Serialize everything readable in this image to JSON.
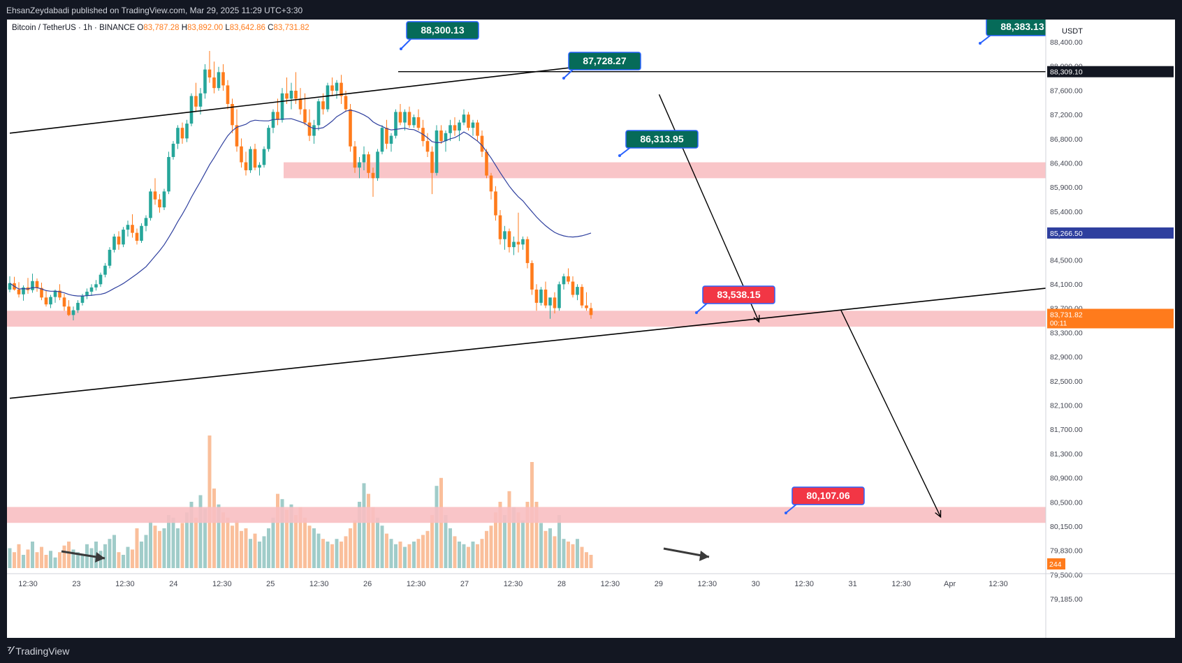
{
  "header": {
    "publisher_line": "EhsanZeydabadi published on TradingView.com, Mar 29, 2025 11:29 UTC+3:30"
  },
  "legend": {
    "symbol": "Bitcoin / TetherUS · 1h · BINANCE",
    "o_label": "O",
    "o_value": "83,787.28",
    "h_label": "H",
    "h_value": "83,892.00",
    "l_label": "L",
    "l_value": "83,642.86",
    "c_label": "C",
    "c_value": "83,731.82"
  },
  "colors": {
    "up": "#26a69a",
    "down": "#ff7b1c",
    "ma": "#2e3f9e",
    "zone": "#f8bfc2",
    "label_green": "#066b59",
    "label_red": "#f23645"
  },
  "axis": {
    "currency": "USDT",
    "price_ticks": [
      "88,400.00",
      "88,000.00",
      "87,600.00",
      "87,200.00",
      "86,800.00",
      "86,400.00",
      "85,900.00",
      "85,400.00",
      "84,900.00",
      "84,500.00",
      "84,100.00",
      "83,700.00",
      "83,300.00",
      "82,900.00",
      "82,500.00",
      "82,100.00",
      "81,700.00",
      "81,300.00",
      "80,900.00",
      "80,500.00",
      "80,150.00",
      "79,830.00",
      "79,500.00",
      "79,185.00"
    ],
    "time_ticks": [
      "12:30",
      "23",
      "12:30",
      "24",
      "12:30",
      "25",
      "12:30",
      "26",
      "12:30",
      "27",
      "12:30",
      "28",
      "12:30",
      "29",
      "12:30",
      "30",
      "12:30",
      "31",
      "12:30",
      "Apr",
      "12:30"
    ],
    "badge_level": "88,309.10",
    "badge_ma": "85,266.50",
    "badge_last": "83,731.82",
    "badge_countdown": "00:11",
    "volume_badge": "244"
  },
  "annotations": [
    {
      "id": "lbl-88300",
      "text": "88,300.13",
      "kind": "green"
    },
    {
      "id": "lbl-88383",
      "text": "88,383.13",
      "kind": "green"
    },
    {
      "id": "lbl-87728",
      "text": "87,728.27",
      "kind": "green"
    },
    {
      "id": "lbl-86313",
      "text": "86,313.95",
      "kind": "green"
    },
    {
      "id": "lbl-83538",
      "text": "83,538.15",
      "kind": "red"
    },
    {
      "id": "lbl-80107",
      "text": "80,107.06",
      "kind": "red"
    }
  ],
  "chart_data": {
    "type": "candlestick",
    "symbol": "Bitcoin / TetherUS",
    "interval": "1h",
    "exchange": "BINANCE",
    "ylim": [
      79000,
      88700
    ],
    "horizontal_level": 88309.1,
    "moving_average_last": 85266.5,
    "last_price": 83731.82,
    "zones": [
      {
        "from": 86300,
        "to": 86600
      },
      {
        "from": 83500,
        "to": 83800
      },
      {
        "from": 79800,
        "to": 80100
      }
    ],
    "trendlines": [
      {
        "from": {
          "x": 0,
          "y": 87150
        },
        "to": {
          "x": 138,
          "y": 88530
        }
      },
      {
        "from": {
          "x": 0,
          "y": 82150
        },
        "to": {
          "x": 232,
          "y": 84260
        }
      }
    ],
    "arrows": [
      {
        "from": {
          "x": 143,
          "y": 87880
        },
        "to": {
          "x": 165,
          "y": 83590
        }
      },
      {
        "from": {
          "x": 183,
          "y": 83820
        },
        "to": {
          "x": 205,
          "y": 79910
        }
      }
    ],
    "candles": [
      [
        0,
        84200,
        84450,
        84150,
        84320
      ],
      [
        1,
        84320,
        84440,
        84180,
        84200
      ],
      [
        2,
        84200,
        84340,
        84050,
        84110
      ],
      [
        3,
        84110,
        84280,
        83990,
        84240
      ],
      [
        4,
        84240,
        84420,
        84120,
        84190
      ],
      [
        5,
        84190,
        84500,
        84140,
        84360
      ],
      [
        6,
        84360,
        84410,
        84160,
        84230
      ],
      [
        7,
        84230,
        84330,
        84000,
        84050
      ],
      [
        8,
        84050,
        84180,
        83880,
        83920
      ],
      [
        9,
        83920,
        84100,
        83850,
        84060
      ],
      [
        10,
        84060,
        84200,
        83950,
        84180
      ],
      [
        11,
        84180,
        84300,
        84000,
        84050
      ],
      [
        12,
        84050,
        84120,
        83800,
        83880
      ],
      [
        13,
        83880,
        84000,
        83700,
        83720
      ],
      [
        14,
        83720,
        83880,
        83620,
        83810
      ],
      [
        15,
        83810,
        84000,
        83760,
        83950
      ],
      [
        16,
        83950,
        84120,
        83900,
        84080
      ],
      [
        17,
        84080,
        84220,
        84020,
        84160
      ],
      [
        18,
        84160,
        84300,
        84080,
        84240
      ],
      [
        19,
        84240,
        84380,
        84180,
        84300
      ],
      [
        20,
        84300,
        84520,
        84250,
        84480
      ],
      [
        21,
        84480,
        84700,
        84430,
        84650
      ],
      [
        22,
        84650,
        85000,
        84600,
        84950
      ],
      [
        23,
        84950,
        85250,
        84900,
        85200
      ],
      [
        24,
        85200,
        85300,
        84950,
        85050
      ],
      [
        25,
        85050,
        85380,
        85000,
        85330
      ],
      [
        26,
        85330,
        85500,
        85200,
        85420
      ],
      [
        27,
        85420,
        85620,
        85180,
        85270
      ],
      [
        28,
        85270,
        85350,
        85050,
        85120
      ],
      [
        29,
        85120,
        85450,
        85080,
        85400
      ],
      [
        30,
        85400,
        85600,
        85300,
        85550
      ],
      [
        31,
        85550,
        86100,
        85500,
        86050
      ],
      [
        32,
        86050,
        86300,
        85800,
        85900
      ],
      [
        33,
        85900,
        86000,
        85650,
        85750
      ],
      [
        34,
        85750,
        86100,
        85700,
        86050
      ],
      [
        35,
        86050,
        86800,
        86000,
        86700
      ],
      [
        36,
        86700,
        87000,
        86650,
        86950
      ],
      [
        37,
        86950,
        87300,
        86850,
        87250
      ],
      [
        38,
        87250,
        87350,
        86950,
        87050
      ],
      [
        39,
        87050,
        87400,
        86980,
        87330
      ],
      [
        40,
        87330,
        87900,
        87280,
        87850
      ],
      [
        41,
        87850,
        88100,
        87550,
        87650
      ],
      [
        42,
        87650,
        88000,
        87500,
        87900
      ],
      [
        43,
        87900,
        88450,
        87800,
        88350
      ],
      [
        44,
        88350,
        88700,
        88100,
        88200
      ],
      [
        45,
        88200,
        88500,
        87900,
        88000
      ],
      [
        46,
        88000,
        88400,
        87950,
        88300
      ],
      [
        47,
        88300,
        88450,
        87950,
        88050
      ],
      [
        48,
        88050,
        88150,
        87600,
        87700
      ],
      [
        49,
        87700,
        87800,
        87150,
        87300
      ],
      [
        50,
        87300,
        87600,
        86800,
        86900
      ],
      [
        51,
        86900,
        87050,
        86500,
        86600
      ],
      [
        52,
        86600,
        86800,
        86350,
        86450
      ],
      [
        53,
        86450,
        86900,
        86400,
        86850
      ],
      [
        54,
        86850,
        86950,
        86450,
        86500
      ],
      [
        55,
        86500,
        86600,
        86350,
        86550
      ],
      [
        56,
        86550,
        86900,
        86500,
        86850
      ],
      [
        57,
        86850,
        87300,
        86800,
        87250
      ],
      [
        58,
        87250,
        87600,
        87150,
        87550
      ],
      [
        59,
        87550,
        87800,
        87300,
        87400
      ],
      [
        60,
        87400,
        88000,
        87350,
        87900
      ],
      [
        61,
        87900,
        88200,
        87700,
        87800
      ],
      [
        62,
        87800,
        88100,
        87600,
        87950
      ],
      [
        63,
        87950,
        88300,
        87700,
        87800
      ],
      [
        64,
        87800,
        88000,
        87500,
        87600
      ],
      [
        65,
        87600,
        87900,
        87300,
        87350
      ],
      [
        66,
        87350,
        87600,
        87000,
        87100
      ],
      [
        67,
        87100,
        87400,
        86950,
        87300
      ],
      [
        68,
        87300,
        87800,
        87200,
        87750
      ],
      [
        69,
        87750,
        87900,
        87500,
        87600
      ],
      [
        70,
        87600,
        88100,
        87550,
        88050
      ],
      [
        71,
        88050,
        88200,
        87850,
        87950
      ],
      [
        72,
        87950,
        88150,
        87800,
        88100
      ],
      [
        73,
        88100,
        88250,
        87700,
        87850
      ],
      [
        74,
        87850,
        87950,
        87550,
        87600
      ],
      [
        75,
        87600,
        87700,
        86800,
        86900
      ],
      [
        76,
        86900,
        87000,
        86400,
        86500
      ],
      [
        77,
        86500,
        86700,
        86300,
        86600
      ],
      [
        78,
        86600,
        86900,
        86450,
        86750
      ],
      [
        79,
        86750,
        86800,
        86300,
        86400
      ],
      [
        80,
        86400,
        86500,
        85950,
        86300
      ],
      [
        81,
        86300,
        86850,
        86250,
        86800
      ],
      [
        82,
        86800,
        87300,
        86750,
        87250
      ],
      [
        83,
        87250,
        87400,
        86850,
        86950
      ],
      [
        84,
        86950,
        87150,
        86800,
        87100
      ],
      [
        85,
        87100,
        87600,
        87050,
        87550
      ],
      [
        86,
        87550,
        87700,
        87300,
        87350
      ],
      [
        87,
        87350,
        87600,
        87200,
        87550
      ],
      [
        88,
        87550,
        87650,
        87250,
        87300
      ],
      [
        89,
        87300,
        87500,
        87250,
        87450
      ],
      [
        90,
        87450,
        87600,
        87200,
        87250
      ],
      [
        91,
        87250,
        87400,
        86900,
        87000
      ],
      [
        92,
        87000,
        87150,
        86700,
        86800
      ],
      [
        93,
        86800,
        86900,
        86000,
        86400
      ],
      [
        94,
        86400,
        87300,
        86350,
        87200
      ],
      [
        95,
        87200,
        87300,
        86950,
        87000
      ],
      [
        96,
        87000,
        87200,
        86800,
        87150
      ],
      [
        97,
        87150,
        87400,
        87000,
        87300
      ],
      [
        98,
        87300,
        87450,
        87100,
        87200
      ],
      [
        99,
        87200,
        87400,
        87000,
        87350
      ],
      [
        100,
        87350,
        87600,
        87300,
        87500
      ],
      [
        101,
        87500,
        87550,
        87200,
        87250
      ],
      [
        102,
        87250,
        87400,
        87100,
        87350
      ],
      [
        103,
        87350,
        87400,
        87000,
        87100
      ],
      [
        104,
        87100,
        87200,
        86700,
        86800
      ],
      [
        105,
        86800,
        86850,
        86300,
        86350
      ],
      [
        106,
        86350,
        86400,
        85900,
        86050
      ],
      [
        107,
        86050,
        86150,
        85500,
        85600
      ],
      [
        108,
        85600,
        85700,
        85050,
        85150
      ],
      [
        109,
        85150,
        85400,
        84950,
        85300
      ],
      [
        110,
        85300,
        85350,
        84900,
        85000
      ],
      [
        111,
        85000,
        85200,
        84850,
        85100
      ],
      [
        112,
        85100,
        85650,
        84900,
        85050
      ],
      [
        113,
        85050,
        85200,
        84950,
        85150
      ],
      [
        114,
        85150,
        85200,
        84600,
        84700
      ],
      [
        115,
        84700,
        84750,
        84100,
        84200
      ],
      [
        116,
        84200,
        84300,
        83800,
        83950
      ],
      [
        117,
        83950,
        84250,
        83900,
        84200
      ],
      [
        118,
        84200,
        84350,
        83850,
        83900
      ],
      [
        119,
        83900,
        84000,
        83650,
        84050
      ],
      [
        120,
        84050,
        84150,
        83750,
        83850
      ],
      [
        121,
        83850,
        84350,
        83800,
        84300
      ],
      [
        122,
        84300,
        84500,
        84200,
        84450
      ],
      [
        123,
        84450,
        84600,
        84300,
        84350
      ],
      [
        124,
        84350,
        84450,
        84050,
        84100
      ],
      [
        125,
        84100,
        84300,
        84000,
        84250
      ],
      [
        126,
        84250,
        84300,
        83850,
        83900
      ],
      [
        127,
        83900,
        84150,
        83800,
        83850
      ],
      [
        128,
        83850,
        83950,
        83650,
        83720
      ]
    ],
    "volumes": [
      0.15,
      0.12,
      0.18,
      0.1,
      0.14,
      0.2,
      0.12,
      0.16,
      0.1,
      0.13,
      0.08,
      0.12,
      0.17,
      0.2,
      0.14,
      0.12,
      0.1,
      0.18,
      0.15,
      0.2,
      0.13,
      0.18,
      0.22,
      0.25,
      0.12,
      0.1,
      0.16,
      0.14,
      0.3,
      0.2,
      0.25,
      0.35,
      0.32,
      0.28,
      0.3,
      0.4,
      0.38,
      0.3,
      0.34,
      0.42,
      0.5,
      0.38,
      0.55,
      0.45,
      1.0,
      0.6,
      0.48,
      0.42,
      0.38,
      0.32,
      0.36,
      0.28,
      0.3,
      0.22,
      0.26,
      0.2,
      0.24,
      0.3,
      0.38,
      0.56,
      0.52,
      0.44,
      0.48,
      0.4,
      0.46,
      0.38,
      0.32,
      0.3,
      0.26,
      0.22,
      0.2,
      0.18,
      0.22,
      0.2,
      0.24,
      0.3,
      0.36,
      0.5,
      0.64,
      0.56,
      0.46,
      0.38,
      0.32,
      0.26,
      0.22,
      0.18,
      0.2,
      0.16,
      0.18,
      0.2,
      0.22,
      0.25,
      0.28,
      0.4,
      0.62,
      0.68,
      0.4,
      0.3,
      0.24,
      0.2,
      0.18,
      0.16,
      0.2,
      0.18,
      0.22,
      0.28,
      0.32,
      0.42,
      0.5,
      0.4,
      0.58,
      0.46,
      0.42,
      0.36,
      0.5,
      0.8,
      0.5,
      0.34,
      0.28,
      0.3,
      0.24,
      0.4,
      0.22,
      0.2,
      0.18,
      0.22,
      0.16,
      0.12,
      0.1
    ]
  }
}
